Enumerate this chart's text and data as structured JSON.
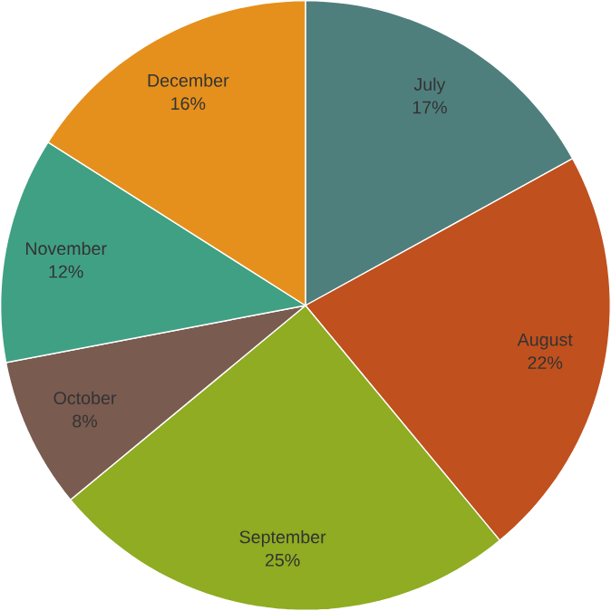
{
  "chart_data": {
    "type": "pie",
    "categories": [
      "July",
      "August",
      "September",
      "October",
      "November",
      "December"
    ],
    "values": [
      17,
      22,
      25,
      8,
      12,
      16
    ],
    "value_labels": [
      "17%",
      "22%",
      "25%",
      "8%",
      "12%",
      "16%"
    ],
    "colors": [
      "#4f7f7d",
      "#c0501e",
      "#8fac22",
      "#7a5b50",
      "#40a084",
      "#e5901c"
    ]
  }
}
